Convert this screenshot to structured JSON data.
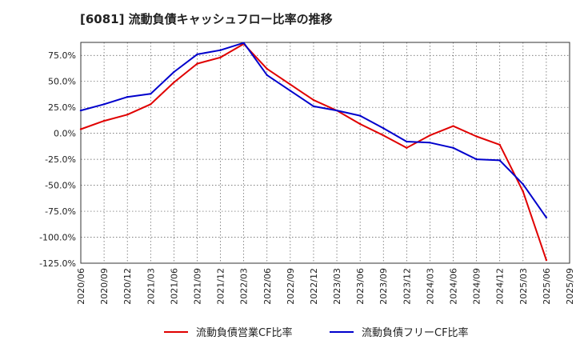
{
  "chart_data": {
    "type": "line",
    "title": "[6081]  流動負債キャッシュフロー比率の推移",
    "xlabel": "",
    "ylabel": "",
    "x": [
      "2020/06",
      "2020/09",
      "2020/12",
      "2021/03",
      "2021/06",
      "2021/09",
      "2021/12",
      "2022/03",
      "2022/06",
      "2022/09",
      "2022/12",
      "2023/03",
      "2023/06",
      "2023/09",
      "2023/12",
      "2024/03",
      "2024/06",
      "2024/09",
      "2024/12",
      "2025/03",
      "2025/06",
      "2025/09"
    ],
    "ylim": [
      -125,
      87.5
    ],
    "yticks": [
      75,
      50,
      25,
      0,
      -25,
      -50,
      -75,
      -100,
      -125
    ],
    "ytick_labels": [
      "75.0%",
      "50.0%",
      "25.0%",
      "0.0%",
      "-25.0%",
      "-50.0%",
      "-75.0%",
      "-100.0%",
      "-125.0%"
    ],
    "grid": true,
    "legend_position": "bottom",
    "series": [
      {
        "name": "流動負債営業CF比率",
        "color": "#e00000",
        "values": [
          4,
          12,
          18,
          28,
          49,
          67,
          73,
          86,
          62,
          47,
          32,
          22,
          9,
          -2,
          -14,
          -2,
          7,
          -3,
          -11,
          -56,
          -122,
          null
        ]
      },
      {
        "name": "流動負債フリーCF比率",
        "color": "#0000cc",
        "values": [
          22,
          28,
          35,
          38,
          59,
          76,
          80,
          87,
          56,
          41,
          26,
          22,
          17,
          5,
          -8,
          -9,
          -14,
          -25,
          -26,
          -49,
          -81,
          null
        ]
      }
    ]
  }
}
